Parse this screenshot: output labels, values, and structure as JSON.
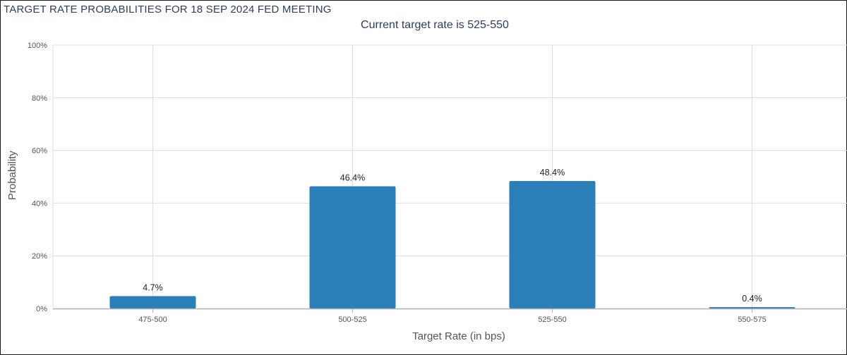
{
  "window": {
    "title": "TARGET RATE PROBABILITIES FOR 18 SEP 2024 FED MEETING"
  },
  "chart_data": {
    "type": "bar",
    "title": "TARGET RATE PROBABILITIES FOR 18 SEP 2024 FED MEETING",
    "subtitle": "Current target rate is 525-550",
    "xlabel": "Target Rate (in bps)",
    "ylabel": "Probability",
    "categories": [
      "475-500",
      "500-525",
      "525-550",
      "550-575"
    ],
    "values": [
      4.7,
      46.4,
      48.4,
      0.4
    ],
    "data_labels": [
      "4.7%",
      "46.4%",
      "48.4%",
      "0.4%"
    ],
    "ylim": [
      0,
      100
    ],
    "yticks": [
      0,
      20,
      40,
      60,
      80,
      100
    ],
    "ytick_labels": [
      "0%",
      "20%",
      "40%",
      "60%",
      "80%",
      "100%"
    ],
    "grid": true,
    "legend": "none",
    "bar_color": "#2a7fb8",
    "grid_color": "#dcdcdc"
  }
}
